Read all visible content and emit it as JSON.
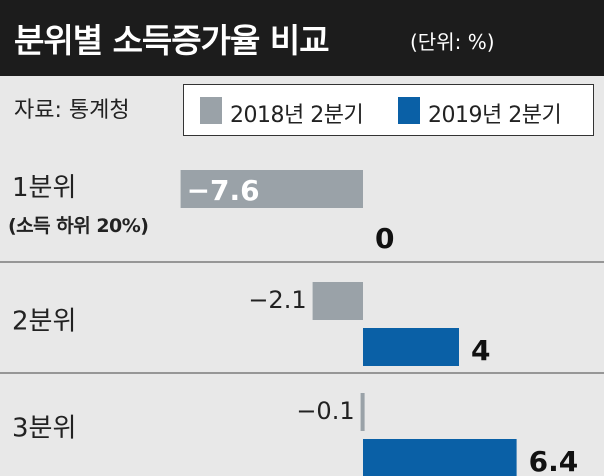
{
  "title": "분위별 소득증가율 비교",
  "unit": "(단위: %)",
  "source": "자료: 통계청",
  "colors": {
    "s2018": "#9aa2a8",
    "s2019": "#0a60a6",
    "header_bg": "#1c1c1c",
    "panel_bg": "#e8e8e8"
  },
  "chart_data": {
    "type": "bar",
    "orientation": "horizontal",
    "categories": [
      "1분위",
      "2분위",
      "3분위"
    ],
    "category_sublabels": [
      "(소득 하위 20%)",
      "",
      ""
    ],
    "series": [
      {
        "name": "2018년 2분기",
        "values": [
          -7.6,
          -2.1,
          -0.1
        ],
        "labels": [
          "−7.6",
          "−2.1",
          "−0.1"
        ]
      },
      {
        "name": "2019년 2분기",
        "values": [
          0,
          4,
          6.4
        ],
        "labels": [
          "0",
          "4",
          "6.4"
        ]
      }
    ]
  }
}
